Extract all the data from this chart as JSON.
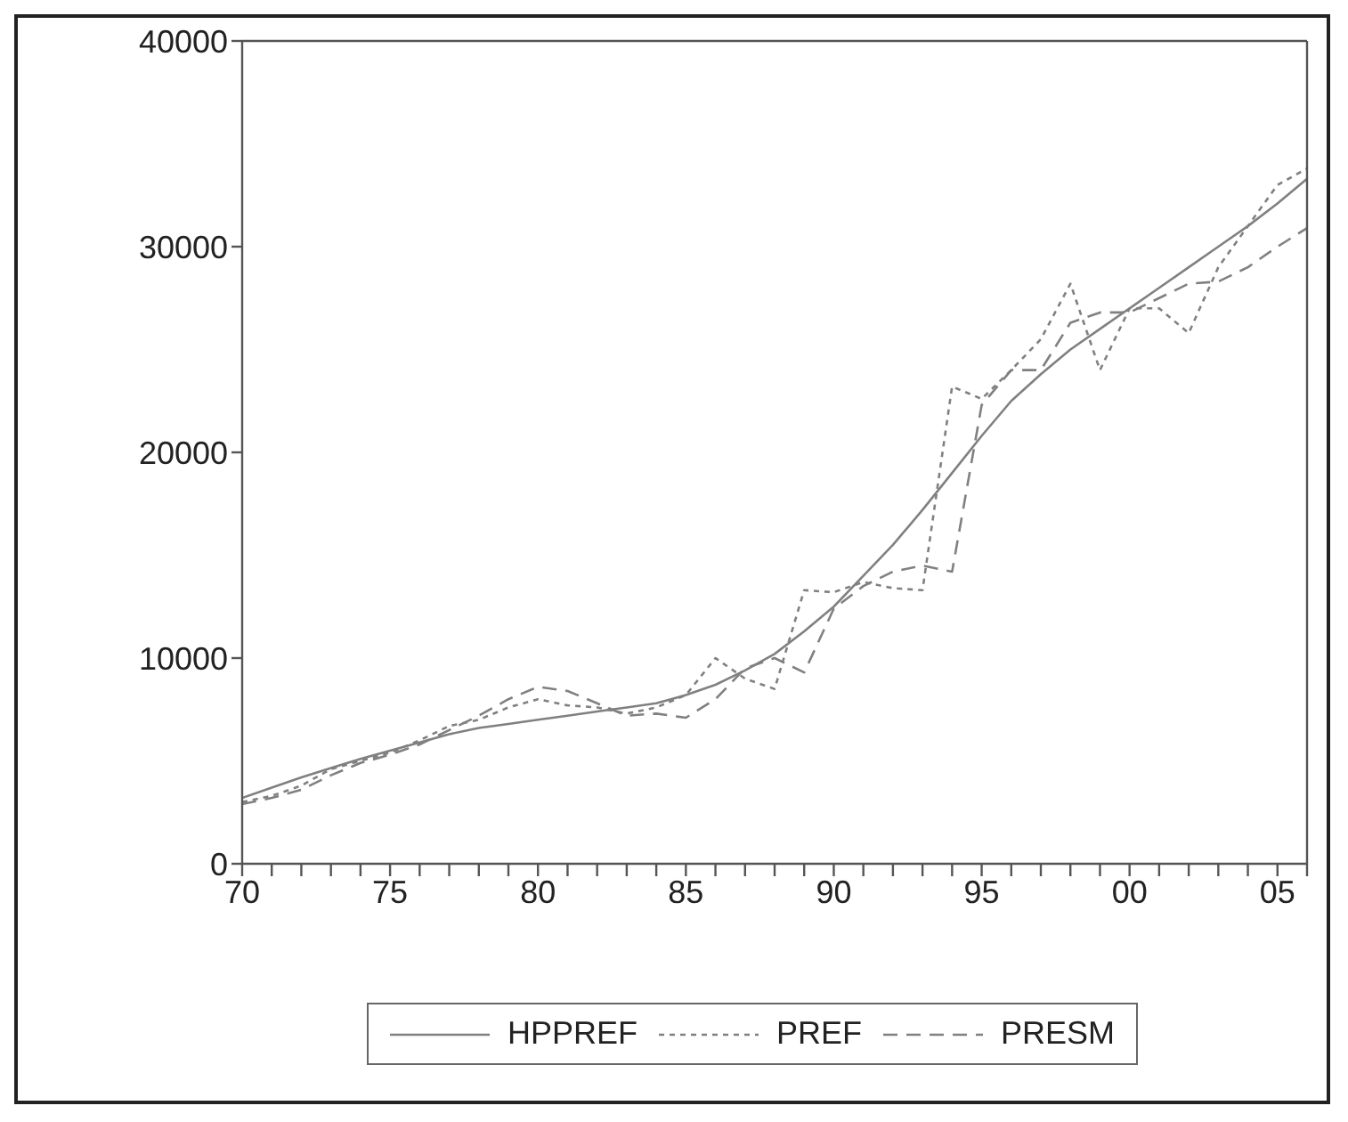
{
  "chart_data": {
    "type": "line",
    "x": [
      1970,
      1971,
      1972,
      1973,
      1974,
      1975,
      1976,
      1977,
      1978,
      1979,
      1980,
      1981,
      1982,
      1983,
      1984,
      1985,
      1986,
      1987,
      1988,
      1989,
      1990,
      1991,
      1992,
      1993,
      1994,
      1995,
      1996,
      1997,
      1998,
      1999,
      2000,
      2001,
      2002,
      2003,
      2004,
      2005,
      2006
    ],
    "series": [
      {
        "name": "HPPREF",
        "color": "#808080",
        "line_style": "solid",
        "values": [
          3200,
          3700,
          4200,
          4650,
          5100,
          5500,
          5900,
          6300,
          6600,
          6800,
          7000,
          7200,
          7400,
          7600,
          7800,
          8200,
          8700,
          9400,
          10200,
          11300,
          12500,
          14000,
          15500,
          17200,
          19000,
          20800,
          22500,
          23800,
          25000,
          26000,
          27000,
          28000,
          29000,
          30000,
          31000,
          32100,
          33300
        ]
      },
      {
        "name": "PREF",
        "color": "#808080",
        "line_style": "dotted",
        "values": [
          3000,
          3300,
          3800,
          4600,
          5000,
          5400,
          6000,
          6700,
          7000,
          7600,
          8000,
          7700,
          7600,
          7300,
          7600,
          8200,
          10000,
          9000,
          8500,
          13300,
          13200,
          13700,
          13400,
          13300,
          23200,
          22600,
          24000,
          25500,
          28200,
          24000,
          27000,
          27000,
          25800,
          29000,
          31000,
          33000,
          33800
        ]
      },
      {
        "name": "PRESM",
        "color": "#808080",
        "line_style": "dashed",
        "values": [
          2900,
          3200,
          3600,
          4300,
          4900,
          5300,
          5800,
          6500,
          7200,
          8000,
          8600,
          8400,
          7800,
          7200,
          7300,
          7100,
          8000,
          9500,
          10000,
          9300,
          12400,
          13500,
          14200,
          14500,
          14200,
          22300,
          24000,
          24000,
          26300,
          26800,
          26800,
          27500,
          28200,
          28300,
          29000,
          30000,
          30900
        ]
      }
    ],
    "xlim": [
      1970,
      2006
    ],
    "xticks": [
      {
        "value": 1970,
        "label": "70"
      },
      {
        "value": 1971,
        "label": null
      },
      {
        "value": 1972,
        "label": null
      },
      {
        "value": 1973,
        "label": null
      },
      {
        "value": 1974,
        "label": null
      },
      {
        "value": 1975,
        "label": "75"
      },
      {
        "value": 1976,
        "label": null
      },
      {
        "value": 1977,
        "label": null
      },
      {
        "value": 1978,
        "label": null
      },
      {
        "value": 1979,
        "label": null
      },
      {
        "value": 1980,
        "label": "80"
      },
      {
        "value": 1981,
        "label": null
      },
      {
        "value": 1982,
        "label": null
      },
      {
        "value": 1983,
        "label": null
      },
      {
        "value": 1984,
        "label": null
      },
      {
        "value": 1985,
        "label": "85"
      },
      {
        "value": 1986,
        "label": null
      },
      {
        "value": 1987,
        "label": null
      },
      {
        "value": 1988,
        "label": null
      },
      {
        "value": 1989,
        "label": null
      },
      {
        "value": 1990,
        "label": "90"
      },
      {
        "value": 1991,
        "label": null
      },
      {
        "value": 1992,
        "label": null
      },
      {
        "value": 1993,
        "label": null
      },
      {
        "value": 1994,
        "label": null
      },
      {
        "value": 1995,
        "label": "95"
      },
      {
        "value": 1996,
        "label": null
      },
      {
        "value": 1997,
        "label": null
      },
      {
        "value": 1998,
        "label": null
      },
      {
        "value": 1999,
        "label": null
      },
      {
        "value": 2000,
        "label": "00"
      },
      {
        "value": 2001,
        "label": null
      },
      {
        "value": 2002,
        "label": null
      },
      {
        "value": 2003,
        "label": null
      },
      {
        "value": 2004,
        "label": null
      },
      {
        "value": 2005,
        "label": "05"
      },
      {
        "value": 2006,
        "label": null
      }
    ],
    "ylim": [
      0,
      40000
    ],
    "yticks": [
      0,
      10000,
      20000,
      30000,
      40000
    ],
    "grid": false,
    "legend": "bottom",
    "marker": "none"
  }
}
